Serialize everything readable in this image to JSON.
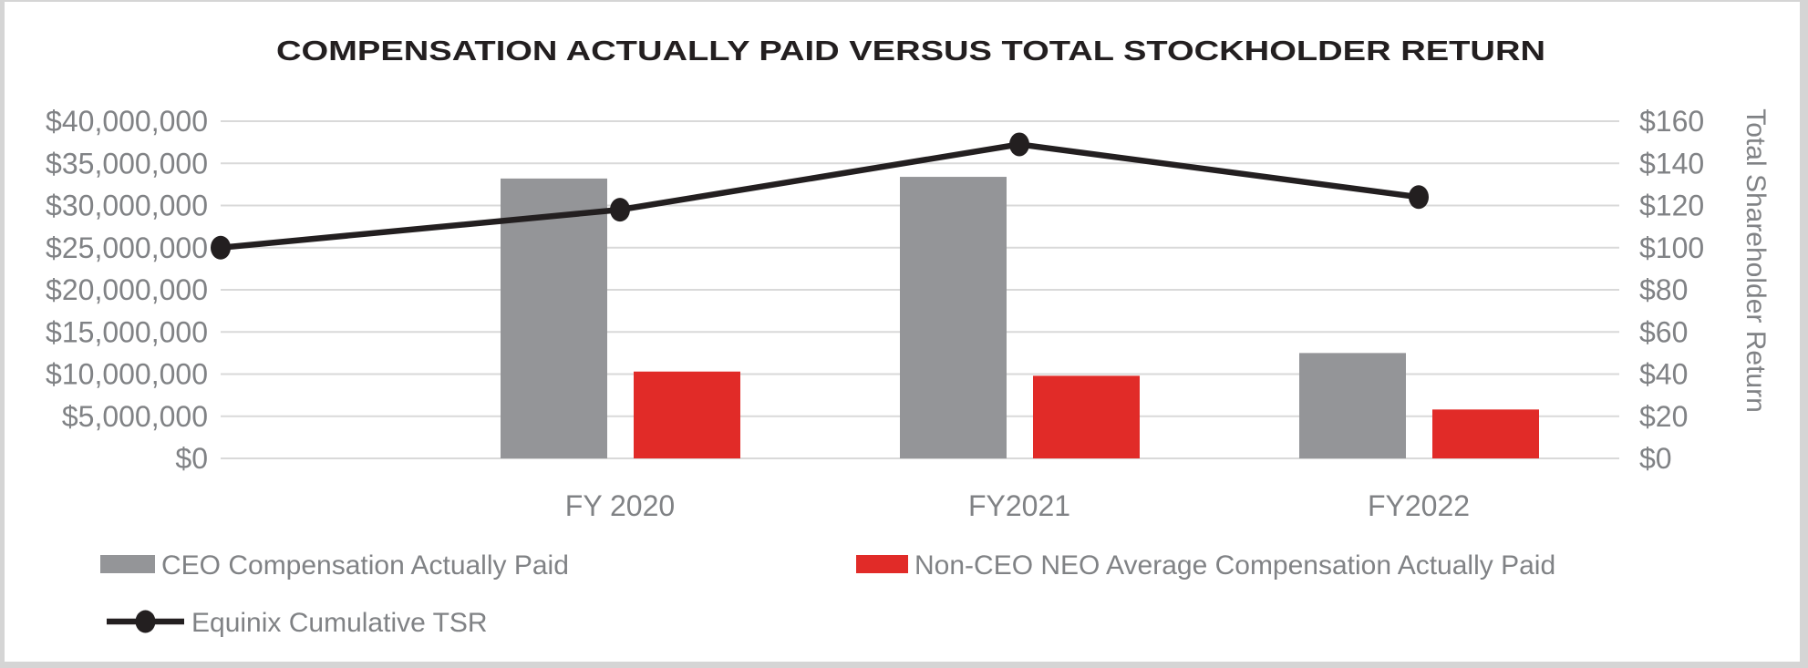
{
  "colors": {
    "ceo_bar": "#949598",
    "nonceo_bar": "#E12B28",
    "tsr_line": "#231F20",
    "axis_text": "#808285",
    "gridline": "#D9D9D9",
    "title_text": "#231F20",
    "image_border": "#D5D5D5"
  },
  "chart_data": {
    "type": "combo-bar-line",
    "title": "COMPENSATION ACTUALLY PAID VERSUS TOTAL STOCKHOLDER RETURN",
    "categories": [
      "FY 2020",
      "FY2021",
      "FY2022"
    ],
    "series": [
      {
        "name": "CEO Compensation Actually Paid",
        "type": "bar",
        "axis": "left",
        "color": "#949598",
        "values": [
          33200000,
          33400000,
          12500000
        ]
      },
      {
        "name": "Non-CEO NEO Average Compensation Actually Paid",
        "type": "bar",
        "axis": "left",
        "color": "#E12B28",
        "values": [
          10300000,
          9800000,
          5800000
        ]
      },
      {
        "name": "Equinix Cumulative TSR",
        "type": "line",
        "axis": "right",
        "color": "#231F20",
        "baseline": 100,
        "values": [
          118,
          149,
          124
        ]
      }
    ],
    "left_axis": {
      "min": 0,
      "max": 40000000,
      "tick_step": 5000000,
      "tick_labels": [
        "$40,000,000",
        "$35,000,000",
        "$30,000,000",
        "$25,000,000",
        "$20,000,000",
        "$15,000,000",
        "$10,000,000",
        "$5,000,000",
        "$0"
      ]
    },
    "right_axis": {
      "title": "Total Shareholder Return",
      "min": 0,
      "max": 160,
      "tick_step": 20,
      "tick_labels": [
        "$160",
        "$140",
        "$120",
        "$100",
        "$80",
        "$60",
        "$40",
        "$20",
        "$0"
      ]
    },
    "grid": "horizontal",
    "legend_position": "bottom-left"
  }
}
